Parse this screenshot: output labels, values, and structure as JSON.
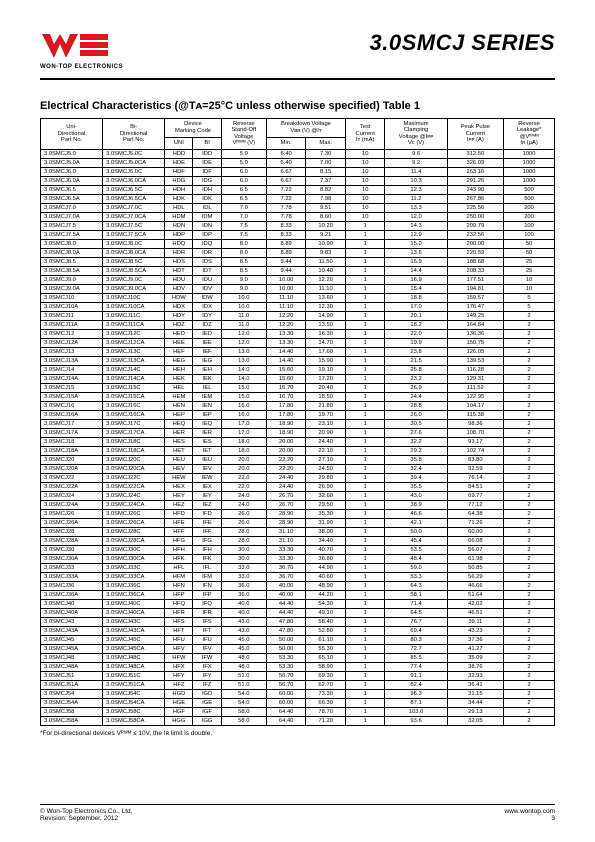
{
  "header": {
    "logo_sub": "WON-TOP ELECTRONICS",
    "series_title": "3.0SMCJ SERIES"
  },
  "table_title": "Electrical Characteristics (@Tᴀ=25°C unless otherwise specified) Table 1",
  "columns": {
    "uni": "Uni-\nDirectional\nPart No.",
    "bi": "Bi-\nDirectional\nPart No.",
    "mark": "Device\nMarking Code",
    "mark_uni": "UNI",
    "mark_bi": "BI",
    "vrwm": "Reverse\nStand-Off\nVoltage\nVᴿᵂᴹ (V)",
    "vbr": "Breakdown Voltage\nVʙʀ (V) @Iᴛ",
    "vbr_min": "Min.",
    "vbr_max": "Max.",
    "it": "Test\nCurrent\nIᴛ (mA)",
    "vc": "Maximum\nClamping\nVoltage @Iᴘᴘ\nVᴄ (V)",
    "ipp": "Peak Pulse\nCurrent\nIᴘᴘ (A)",
    "ir": "Reverse\nLeakage*\n@Vᴿᵂᴹ\nIʀ (µA)"
  },
  "rows": [
    [
      "3.0SMCJ5.0",
      "3.0SMCJ5.0C",
      "HDD",
      "IDD",
      "5.0",
      "6.40",
      "7.30",
      "10",
      "9.6",
      "312.50",
      "1000",
      true
    ],
    [
      "3.0SMCJ5.0A",
      "3.0SMCJ5.0CA",
      "HDE",
      "IDE",
      "5.0",
      "6.40",
      "7.00",
      "10",
      "9.2",
      "326.09",
      "1000",
      false
    ],
    [
      "3.0SMCJ6.0",
      "3.0SMCJ6.0C",
      "HDF",
      "IDF",
      "6.0",
      "6.67",
      "8.15",
      "10",
      "11.4",
      "263.16",
      "1000",
      false
    ],
    [
      "3.0SMCJ6.0A",
      "3.0SMCJ6.0CA",
      "HDG",
      "IDG",
      "6.0",
      "6.67",
      "7.37",
      "10",
      "10.3",
      "291.26",
      "1000",
      false
    ],
    [
      "3.0SMCJ6.5",
      "3.0SMCJ6.5C",
      "HDH",
      "IDH",
      "6.5",
      "7.22",
      "8.82",
      "10",
      "12.3",
      "243.90",
      "500",
      true
    ],
    [
      "3.0SMCJ6.5A",
      "3.0SMCJ6.5CA",
      "HDK",
      "IDK",
      "6.5",
      "7.22",
      "7.98",
      "10",
      "11.2",
      "267.86",
      "500",
      false
    ],
    [
      "3.0SMCJ7.0",
      "3.0SMCJ7.0C",
      "HDL",
      "IDL",
      "7.0",
      "7.78",
      "9.51",
      "10",
      "13.3",
      "225.56",
      "200",
      false
    ],
    [
      "3.0SMCJ7.0A",
      "3.0SMCJ7.0CA",
      "HDM",
      "IDM",
      "7.0",
      "7.78",
      "8.60",
      "10",
      "12.0",
      "250.00",
      "200",
      false
    ],
    [
      "3.0SMCJ7.5",
      "3.0SMCJ7.5C",
      "HDN",
      "IDN",
      "7.5",
      "8.33",
      "10.20",
      "1",
      "14.3",
      "209.79",
      "100",
      true
    ],
    [
      "3.0SMCJ7.5A",
      "3.0SMCJ7.5CA",
      "HDP",
      "IDP",
      "7.5",
      "8.33",
      "9.21",
      "1",
      "12.9",
      "232.56",
      "100",
      false
    ],
    [
      "3.0SMCJ8.0",
      "3.0SMCJ8.0C",
      "HDQ",
      "IDQ",
      "8.0",
      "8.89",
      "10.90",
      "1",
      "15.0",
      "200.00",
      "50",
      false
    ],
    [
      "3.0SMCJ8.0A",
      "3.0SMCJ8.0CA",
      "HDR",
      "IDR",
      "8.0",
      "8.89",
      "9.83",
      "1",
      "13.6",
      "220.59",
      "50",
      false
    ],
    [
      "3.0SMCJ8.5",
      "3.0SMCJ8.5C",
      "HDS",
      "IDS",
      "8.5",
      "9.44",
      "11.50",
      "1",
      "15.9",
      "188.68",
      "25",
      true
    ],
    [
      "3.0SMCJ8.5A",
      "3.0SMCJ8.5CA",
      "HDT",
      "IDT",
      "8.5",
      "9.44",
      "10.40",
      "1",
      "14.4",
      "208.33",
      "25",
      false
    ],
    [
      "3.0SMCJ9.0",
      "3.0SMCJ9.0C",
      "HDU",
      "IDU",
      "9.0",
      "10.00",
      "12.20",
      "1",
      "16.9",
      "177.51",
      "10",
      false
    ],
    [
      "3.0SMCJ9.0A",
      "3.0SMCJ9.0CA",
      "HDV",
      "IDV",
      "9.0",
      "10.00",
      "11.10",
      "1",
      "15.4",
      "194.81",
      "10",
      false
    ],
    [
      "3.0SMCJ10",
      "3.0SMCJ10C",
      "HDW",
      "IDW",
      "10.0",
      "11.10",
      "13.60",
      "1",
      "18.8",
      "159.57",
      "5",
      true
    ],
    [
      "3.0SMCJ10A",
      "3.0SMCJ10CA",
      "HDX",
      "IDX",
      "10.0",
      "11.10",
      "12.30",
      "1",
      "17.0",
      "176.47",
      "5",
      false
    ],
    [
      "3.0SMCJ11",
      "3.0SMCJ11C",
      "HDY",
      "IDY",
      "11.0",
      "12.20",
      "14.90",
      "1",
      "20.1",
      "149.25",
      "2",
      false
    ],
    [
      "3.0SMCJ11A",
      "3.0SMCJ11CA",
      "HDZ",
      "IDZ",
      "11.0",
      "12.20",
      "13.50",
      "1",
      "18.2",
      "164.84",
      "2",
      false
    ],
    [
      "3.0SMCJ12",
      "3.0SMCJ12C",
      "HED",
      "IED",
      "12.0",
      "13.30",
      "16.30",
      "1",
      "22.0",
      "136.36",
      "2",
      true
    ],
    [
      "3.0SMCJ12A",
      "3.0SMCJ12CA",
      "HEE",
      "IEE",
      "12.0",
      "13.30",
      "14.70",
      "1",
      "19.9",
      "150.75",
      "2",
      false
    ],
    [
      "3.0SMCJ13",
      "3.0SMCJ13C",
      "HEF",
      "IEF",
      "13.0",
      "14.40",
      "17.60",
      "1",
      "23.8",
      "126.05",
      "2",
      false
    ],
    [
      "3.0SMCJ13A",
      "3.0SMCJ13CA",
      "HEG",
      "IEG",
      "13.0",
      "14.40",
      "15.90",
      "1",
      "21.5",
      "139.53",
      "2",
      false
    ],
    [
      "3.0SMCJ14",
      "3.0SMCJ14C",
      "HEH",
      "IEH",
      "14.0",
      "15.60",
      "19.10",
      "1",
      "25.8",
      "116.28",
      "2",
      true
    ],
    [
      "3.0SMCJ14A",
      "3.0SMCJ14CA",
      "HEK",
      "IEK",
      "14.0",
      "15.60",
      "17.20",
      "1",
      "23.2",
      "129.31",
      "2",
      false
    ],
    [
      "3.0SMCJ15",
      "3.0SMCJ15C",
      "HEL",
      "IEL",
      "15.0",
      "16.70",
      "20.40",
      "1",
      "26.9",
      "111.52",
      "2",
      false
    ],
    [
      "3.0SMCJ15A",
      "3.0SMCJ15CA",
      "HEM",
      "IEM",
      "15.0",
      "16.70",
      "18.50",
      "1",
      "24.4",
      "122.95",
      "2",
      false
    ],
    [
      "3.0SMCJ16",
      "3.0SMCJ16C",
      "HEN",
      "IEN",
      "16.0",
      "17.80",
      "21.80",
      "1",
      "28.8",
      "104.17",
      "2",
      true
    ],
    [
      "3.0SMCJ16A",
      "3.0SMCJ16CA",
      "HEP",
      "IEP",
      "16.0",
      "17.80",
      "19.70",
      "1",
      "26.0",
      "115.38",
      "2",
      false
    ],
    [
      "3.0SMCJ17",
      "3.0SMCJ17C",
      "HEQ",
      "IEQ",
      "17.0",
      "18.90",
      "23.10",
      "1",
      "30.5",
      "98.36",
      "2",
      false
    ],
    [
      "3.0SMCJ17A",
      "3.0SMCJ17CA",
      "HER",
      "IER",
      "17.0",
      "18.90",
      "20.90",
      "1",
      "27.6",
      "108.70",
      "2",
      false
    ],
    [
      "3.0SMCJ18",
      "3.0SMCJ18C",
      "HES",
      "IES",
      "18.0",
      "20.00",
      "24.40",
      "1",
      "32.2",
      "93.17",
      "2",
      true
    ],
    [
      "3.0SMCJ18A",
      "3.0SMCJ18CA",
      "HET",
      "IET",
      "18.0",
      "20.00",
      "22.10",
      "1",
      "29.2",
      "102.74",
      "2",
      false
    ],
    [
      "3.0SMCJ20",
      "3.0SMCJ20C",
      "HEU",
      "IEU",
      "20.0",
      "22.20",
      "27.10",
      "1",
      "35.8",
      "83.80",
      "2",
      false
    ],
    [
      "3.0SMCJ20A",
      "3.0SMCJ20CA",
      "HEV",
      "IEV",
      "20.0",
      "22.20",
      "24.50",
      "1",
      "32.4",
      "92.59",
      "2",
      false
    ],
    [
      "3.0SMCJ22",
      "3.0SMCJ22C",
      "HEW",
      "IEW",
      "22.0",
      "24.40",
      "29.80",
      "1",
      "39.4",
      "76.14",
      "2",
      true
    ],
    [
      "3.0SMCJ22A",
      "3.0SMCJ22CA",
      "HEX",
      "IEX",
      "22.0",
      "24.40",
      "26.90",
      "1",
      "35.5",
      "84.51",
      "2",
      false
    ],
    [
      "3.0SMCJ24",
      "3.0SMCJ24C",
      "HEY",
      "IEY",
      "24.0",
      "26.70",
      "32.60",
      "1",
      "43.0",
      "69.77",
      "2",
      false
    ],
    [
      "3.0SMCJ24A",
      "3.0SMCJ24CA",
      "HEZ",
      "IEZ",
      "24.0",
      "26.70",
      "29.50",
      "1",
      "38.9",
      "77.12",
      "2",
      false
    ],
    [
      "3.0SMCJ26",
      "3.0SMCJ26C",
      "HFD",
      "IFD",
      "26.0",
      "28.90",
      "35.30",
      "1",
      "46.6",
      "64.38",
      "2",
      true
    ],
    [
      "3.0SMCJ26A",
      "3.0SMCJ26CA",
      "HFE",
      "IFE",
      "26.0",
      "28.90",
      "31.90",
      "1",
      "42.1",
      "71.26",
      "2",
      false
    ],
    [
      "3.0SMCJ28",
      "3.0SMCJ28C",
      "HFF",
      "IFF",
      "28.0",
      "31.10",
      "38.00",
      "1",
      "50.0",
      "60.00",
      "2",
      false
    ],
    [
      "3.0SMCJ28A",
      "3.0SMCJ28CA",
      "HFG",
      "IFG",
      "28.0",
      "31.10",
      "34.40",
      "1",
      "45.4",
      "66.08",
      "2",
      false
    ],
    [
      "3.0SMCJ30",
      "3.0SMCJ30C",
      "HFH",
      "IFH",
      "30.0",
      "33.30",
      "40.70",
      "1",
      "53.5",
      "56.07",
      "2",
      true
    ],
    [
      "3.0SMCJ30A",
      "3.0SMCJ30CA",
      "HFK",
      "IFK",
      "30.0",
      "33.30",
      "36.80",
      "1",
      "48.4",
      "61.98",
      "2",
      false
    ],
    [
      "3.0SMCJ33",
      "3.0SMCJ33C",
      "HFL",
      "IFL",
      "33.0",
      "36.70",
      "44.90",
      "1",
      "59.0",
      "50.85",
      "2",
      false
    ],
    [
      "3.0SMCJ33A",
      "3.0SMCJ33CA",
      "HFM",
      "IFM",
      "33.0",
      "36.70",
      "40.60",
      "1",
      "53.3",
      "56.29",
      "2",
      false
    ],
    [
      "3.0SMCJ36",
      "3.0SMCJ36C",
      "HFN",
      "IFN",
      "36.0",
      "40.00",
      "48.90",
      "1",
      "64.3",
      "46.66",
      "2",
      true
    ],
    [
      "3.0SMCJ36A",
      "3.0SMCJ36CA",
      "HFP",
      "IFP",
      "36.0",
      "40.00",
      "44.20",
      "1",
      "58.1",
      "51.64",
      "2",
      false
    ],
    [
      "3.0SMCJ40",
      "3.0SMCJ40C",
      "HFQ",
      "IFQ",
      "40.0",
      "44.40",
      "54.30",
      "1",
      "71.4",
      "42.02",
      "2",
      false
    ],
    [
      "3.0SMCJ40A",
      "3.0SMCJ40CA",
      "HFR",
      "IFR",
      "40.0",
      "44.40",
      "49.10",
      "1",
      "64.5",
      "46.51",
      "2",
      false
    ],
    [
      "3.0SMCJ43",
      "3.0SMCJ43C",
      "HFS",
      "IFS",
      "43.0",
      "47.80",
      "58.40",
      "1",
      "76.7",
      "39.11",
      "2",
      true
    ],
    [
      "3.0SMCJ43A",
      "3.0SMCJ43CA",
      "HFT",
      "IFT",
      "43.0",
      "47.80",
      "52.80",
      "1",
      "69.4",
      "43.23",
      "2",
      false
    ],
    [
      "3.0SMCJ45",
      "3.0SMCJ45C",
      "HFU",
      "IFU",
      "45.0",
      "50.00",
      "61.10",
      "1",
      "80.3",
      "37.36",
      "2",
      false
    ],
    [
      "3.0SMCJ45A",
      "3.0SMCJ45CA",
      "HFV",
      "IFV",
      "45.0",
      "50.00",
      "55.30",
      "1",
      "72.7",
      "41.27",
      "2",
      false
    ],
    [
      "3.0SMCJ48",
      "3.0SMCJ48C",
      "HFW",
      "IFW",
      "48.0",
      "53.30",
      "65.10",
      "1",
      "85.5",
      "35.09",
      "2",
      true
    ],
    [
      "3.0SMCJ48A",
      "3.0SMCJ48CA",
      "HFX",
      "IFX",
      "48.0",
      "53.30",
      "58.90",
      "1",
      "77.4",
      "38.76",
      "2",
      false
    ],
    [
      "3.0SMCJ51",
      "3.0SMCJ51C",
      "HFY",
      "IFY",
      "51.0",
      "56.70",
      "69.30",
      "1",
      "91.1",
      "32.93",
      "2",
      false
    ],
    [
      "3.0SMCJ51A",
      "3.0SMCJ51CA",
      "HFZ",
      "IFZ",
      "51.0",
      "56.70",
      "62.70",
      "1",
      "82.4",
      "36.41",
      "2",
      false
    ],
    [
      "3.0SMCJ54",
      "3.0SMCJ54C",
      "HGD",
      "IGD",
      "54.0",
      "60.00",
      "73.30",
      "1",
      "96.3",
      "31.15",
      "2",
      true
    ],
    [
      "3.0SMCJ54A",
      "3.0SMCJ54CA",
      "HGE",
      "IGE",
      "54.0",
      "60.00",
      "66.30",
      "1",
      "87.1",
      "34.44",
      "2",
      false
    ],
    [
      "3.0SMCJ58",
      "3.0SMCJ58C",
      "HGF",
      "IGF",
      "58.0",
      "64.40",
      "78.70",
      "1",
      "103.0",
      "29.13",
      "2",
      false
    ],
    [
      "3.0SMCJ58A",
      "3.0SMCJ58CA",
      "HGG",
      "IGG",
      "58.0",
      "64.40",
      "71.20",
      "1",
      "93.6",
      "32.05",
      "2",
      false
    ]
  ],
  "footnote": "*For bi-directional devices Vᴿᵂᴹ ≤ 10V, the Iʀ limit is double.",
  "footer": {
    "left1": "© Won-Top Electronics Co., Ltd.",
    "left2": "Revision: September, 2012",
    "right1": "www.wontop.com",
    "right2": "3"
  },
  "colors": {
    "logo_red": "#d71920",
    "text": "#000000",
    "bg": "#ffffff"
  }
}
